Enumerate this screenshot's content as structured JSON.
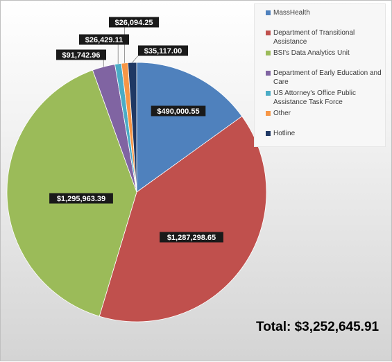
{
  "chart_data": {
    "type": "pie",
    "categories": [
      "MassHealth",
      "Department of Transitional Assistance",
      "BSI's Data Analytics Unit",
      "Department of Early Education and Care",
      "US Attorney's Office Public Assistance Task Force",
      "Other",
      "Hotline"
    ],
    "values": [
      490000.55,
      1287298.65,
      1295963.39,
      91742.96,
      26429.11,
      26094.25,
      35117.0
    ],
    "data_labels": [
      "$490,000.55",
      "$1,287,298.65",
      "$1,295,963.39",
      "$91,742.96",
      "$26,429.11",
      "$26,094.25",
      "$35,117.00"
    ],
    "colors": [
      "#4f81bd",
      "#c0504d",
      "#9bbb59",
      "#8064a2",
      "#4bacc6",
      "#f79646",
      "#1f3864"
    ],
    "start_angle_deg": 0,
    "direction": "clockwise",
    "legend_position": "top-right"
  },
  "total_label": "Total: $3,252,645.91"
}
